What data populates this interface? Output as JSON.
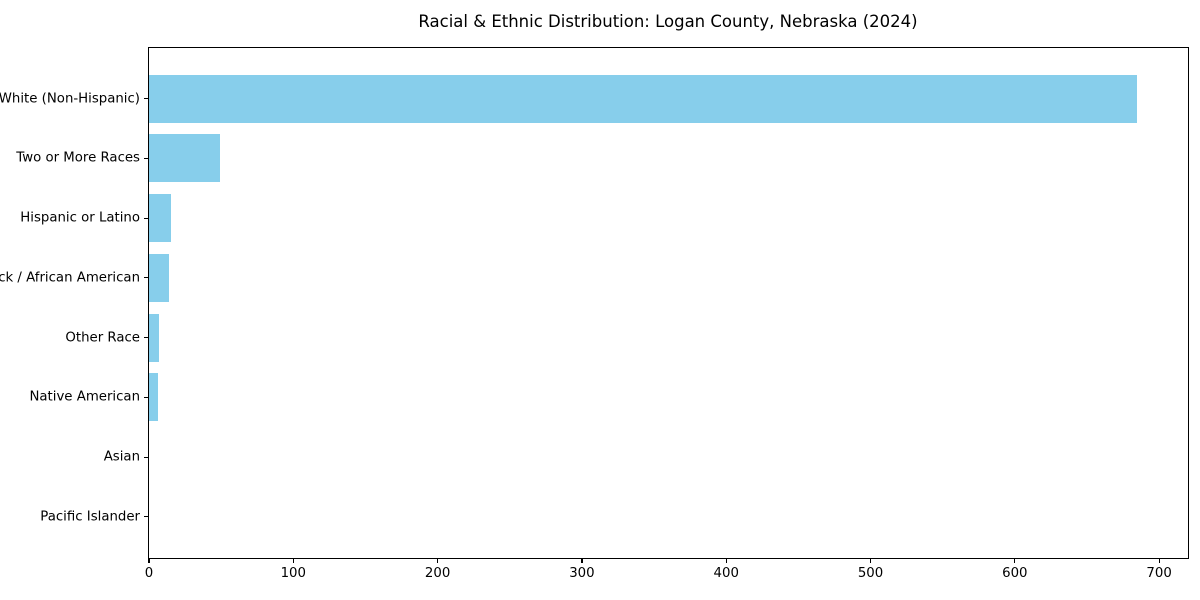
{
  "chart_data": {
    "type": "bar",
    "orientation": "horizontal",
    "title": "Racial & Ethnic Distribution: Logan County, Nebraska (2024)",
    "categories": [
      "White (Non-Hispanic)",
      "Two or More Races",
      "Hispanic or Latino",
      "Black / African American",
      "Other Race",
      "Native American",
      "Asian",
      "Pacific Islander"
    ],
    "values": [
      685,
      49,
      15,
      14,
      7,
      6,
      0,
      0
    ],
    "xlabel": "",
    "ylabel": "",
    "xlim": [
      0,
      720
    ],
    "xticks": [
      0,
      100,
      200,
      300,
      400,
      500,
      600,
      700
    ],
    "xtick_labels": [
      "0",
      "100",
      "200",
      "300",
      "400",
      "500",
      "600",
      "700"
    ],
    "bar_color": "#87CEEB",
    "spine_color": "#000000",
    "text_color": "#000000",
    "background_color": "#ffffff",
    "grid": false,
    "legend": "none",
    "sort_order": "descending"
  }
}
